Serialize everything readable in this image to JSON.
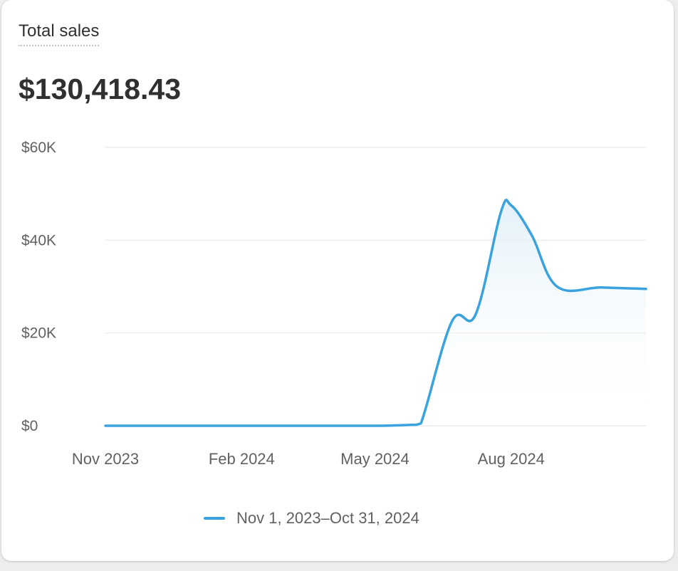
{
  "card": {
    "title": "Total sales",
    "total": "$130,418.43"
  },
  "colors": {
    "line": "#3aa3dd",
    "fill": "#dfeff8",
    "grid": "#ececec",
    "axis_text": "#616161"
  },
  "chart_data": {
    "type": "area",
    "title": "Total sales",
    "xlabel": "",
    "ylabel": "",
    "ylim": [
      0,
      60000
    ],
    "grid": true,
    "y_ticks": [
      {
        "value": 0,
        "label": "$0"
      },
      {
        "value": 20000,
        "label": "$20K"
      },
      {
        "value": 40000,
        "label": "$40K"
      },
      {
        "value": 60000,
        "label": "$60K"
      }
    ],
    "x_ticks": [
      {
        "date": "2023-11-01",
        "label": "Nov 2023"
      },
      {
        "date": "2024-02-01",
        "label": "Feb 2024"
      },
      {
        "date": "2024-05-01",
        "label": "May 2024"
      },
      {
        "date": "2024-08-01",
        "label": "Aug 2024"
      }
    ],
    "x_range": [
      "2023-11-01",
      "2024-10-31"
    ],
    "legend_position": "bottom",
    "series": [
      {
        "name": "Nov 1, 2023–Oct 31, 2024",
        "points": [
          {
            "x": "2023-11-01",
            "y": 0
          },
          {
            "x": "2023-12-01",
            "y": 0
          },
          {
            "x": "2024-01-01",
            "y": 0
          },
          {
            "x": "2024-02-01",
            "y": 0
          },
          {
            "x": "2024-03-01",
            "y": 0
          },
          {
            "x": "2024-04-01",
            "y": 0
          },
          {
            "x": "2024-05-01",
            "y": 0
          },
          {
            "x": "2024-05-25",
            "y": 200
          },
          {
            "x": "2024-06-01",
            "y": 500
          },
          {
            "x": "2024-06-22",
            "y": 22500
          },
          {
            "x": "2024-07-08",
            "y": 24000
          },
          {
            "x": "2024-07-25",
            "y": 46000
          },
          {
            "x": "2024-08-01",
            "y": 47500
          },
          {
            "x": "2024-08-15",
            "y": 41000
          },
          {
            "x": "2024-09-01",
            "y": 30000
          },
          {
            "x": "2024-10-01",
            "y": 29800
          },
          {
            "x": "2024-10-31",
            "y": 29500
          }
        ]
      }
    ]
  }
}
